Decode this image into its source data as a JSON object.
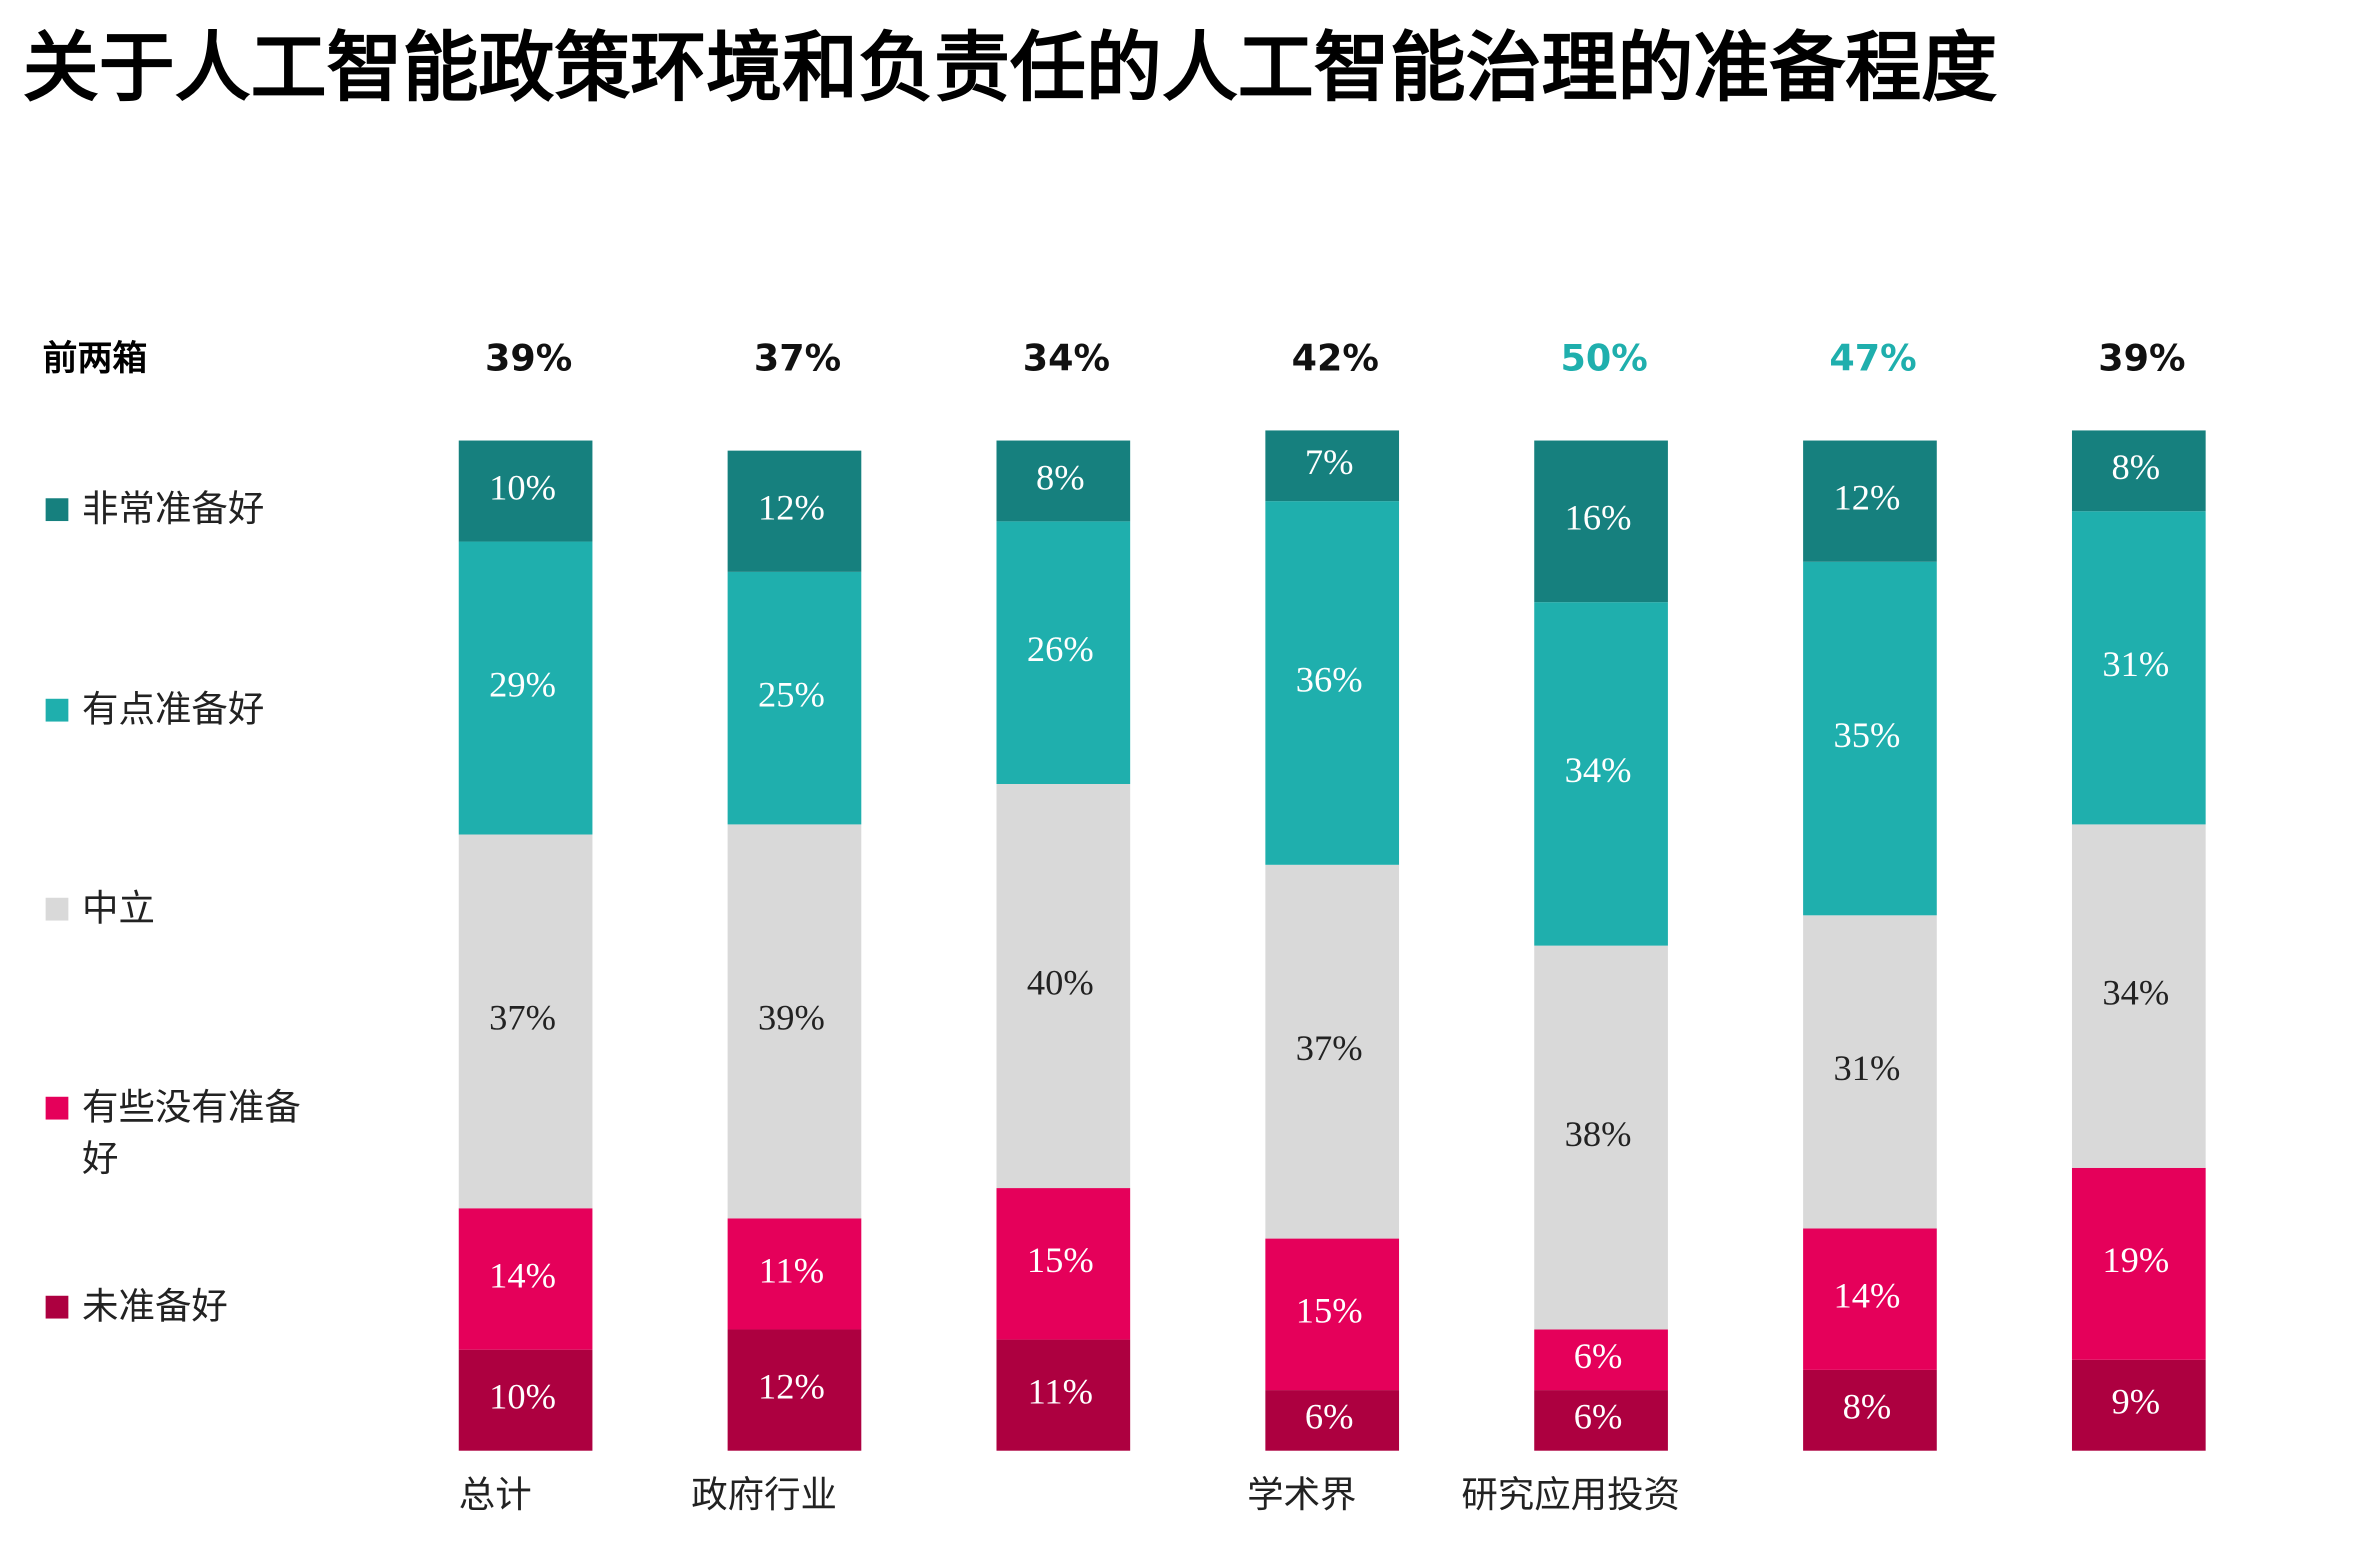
{
  "chart_data": {
    "type": "stacked_bar",
    "title": "关于人工智能政策环境和负责任的人工智能治理的准备程度",
    "categories": [
      "总计",
      "政府行业",
      null,
      "学术界",
      "研究应用投资",
      null,
      null
    ],
    "ylim": [
      0,
      100
    ],
    "top_box": {
      "label": "前两箱",
      "values": [
        39,
        37,
        34,
        42,
        50,
        47,
        39
      ],
      "value_labels": [
        "39%",
        "37%",
        "34%",
        "42%",
        "50%",
        "47%",
        "39%"
      ],
      "colors": [
        "#111111",
        "#111111",
        "#111111",
        "#111111",
        "#1fafad",
        "#1fafad",
        "#111111"
      ]
    },
    "series": [
      {
        "name": "非常准备好",
        "color": "#16807e",
        "values": [
          10,
          12,
          8,
          7,
          16,
          12,
          8
        ],
        "value_labels": [
          "10%",
          "12%",
          "8%",
          "7%",
          "16%",
          "12%",
          "8%"
        ]
      },
      {
        "name": "有点准备好",
        "color": "#1fafad",
        "values": [
          29,
          25,
          26,
          36,
          34,
          35,
          31
        ],
        "value_labels": [
          "29%",
          "25%",
          "26%",
          "36%",
          "34%",
          "35%",
          "31%"
        ]
      },
      {
        "name": "中立",
        "color": "#d9d9d9",
        "values": [
          37,
          39,
          40,
          37,
          38,
          31,
          34
        ],
        "value_labels": [
          "37%",
          "39%",
          "40%",
          "37%",
          "38%",
          "31%",
          "34%"
        ]
      },
      {
        "name": "有些没有准备好",
        "color": "#e5005a",
        "values": [
          14,
          11,
          15,
          15,
          6,
          14,
          19
        ],
        "value_labels": [
          "14%",
          "11%",
          "15%",
          "15%",
          "6%",
          "14%",
          "19%"
        ]
      },
      {
        "name": "未准备好",
        "color": "#ad0040",
        "values": [
          10,
          12,
          11,
          6,
          6,
          8,
          9
        ],
        "value_labels": [
          "10%",
          "12%",
          "11%",
          "6%",
          "6%",
          "8%",
          "9%"
        ]
      }
    ]
  }
}
